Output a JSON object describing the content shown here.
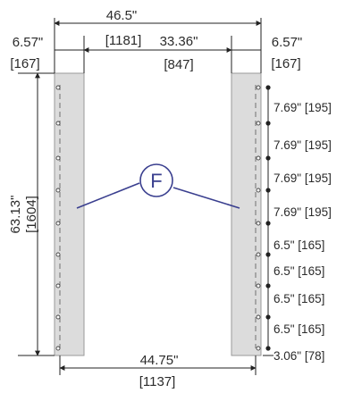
{
  "dimensions": {
    "overall_width": {
      "imperial": "46.5\"",
      "metric": "[1181]"
    },
    "inner_width": {
      "imperial": "33.36\"",
      "metric": "[847]"
    },
    "left_panel_width": {
      "imperial": "6.57\"",
      "metric": "[167]"
    },
    "right_panel_width": {
      "imperial": "6.57\"",
      "metric": "[167]"
    },
    "height": {
      "imperial": "63.13\"",
      "metric": "[1604]"
    },
    "bottom_width": {
      "imperial": "44.75\"",
      "metric": "[1137]"
    }
  },
  "callout": {
    "label": "F"
  },
  "hole_spacing": [
    "7.69\" [195]",
    "7.69\" [195]",
    "7.69\" [195]",
    "7.69\" [195]",
    "6.5\" [165]",
    "6.5\" [165]",
    "6.5\" [165]",
    "6.5\" [165]",
    "3.06\" [78]"
  ],
  "colors": {
    "panel_fill": "#dcdcdc",
    "line": "#222222",
    "callout": "#3a3f8f"
  }
}
